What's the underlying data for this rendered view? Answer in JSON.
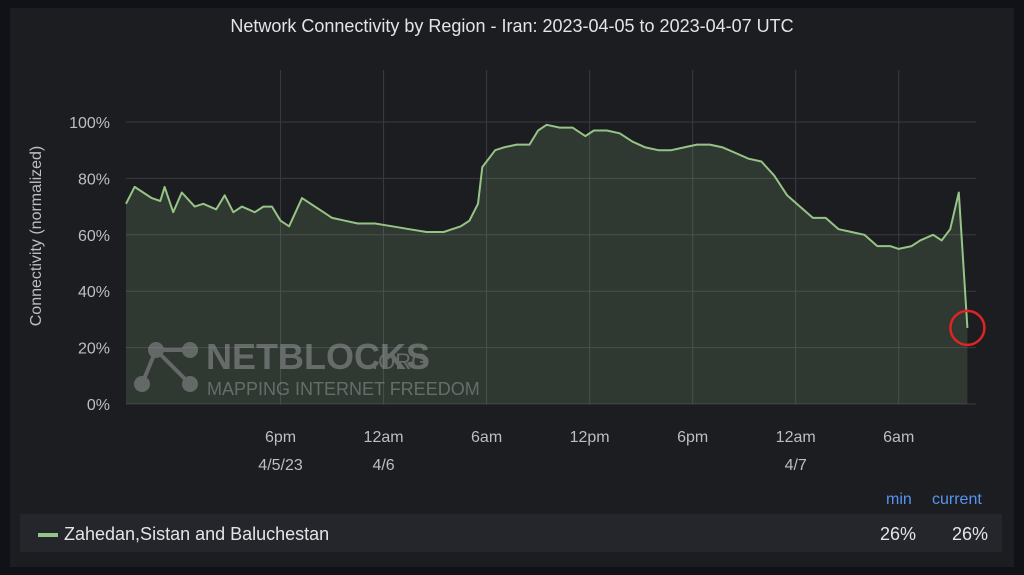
{
  "chart_data": {
    "type": "area",
    "title": "Network Connectivity by Region - Iran: 2023-04-05 to 2023-04-07 UTC",
    "ylabel": "Connectivity (normalized)",
    "xlabel": "",
    "ylim": [
      0,
      100
    ],
    "yticks": [
      "0%",
      "20%",
      "40%",
      "60%",
      "80%",
      "100%"
    ],
    "xlim": [
      "2023-04-05T09:00Z",
      "2023-04-07T10:30Z"
    ],
    "xticks": [
      {
        "label": "6pm",
        "sublabel": "4/5/23",
        "t": "2023-04-05T18:00Z"
      },
      {
        "label": "12am",
        "sublabel": "4/6",
        "t": "2023-04-06T00:00Z"
      },
      {
        "label": "6am",
        "sublabel": "",
        "t": "2023-04-06T06:00Z"
      },
      {
        "label": "12pm",
        "sublabel": "",
        "t": "2023-04-06T12:00Z"
      },
      {
        "label": "6pm",
        "sublabel": "",
        "t": "2023-04-06T18:00Z"
      },
      {
        "label": "12am",
        "sublabel": "4/7",
        "t": "2023-04-07T00:00Z"
      },
      {
        "label": "6am",
        "sublabel": "",
        "t": "2023-04-07T06:00Z"
      }
    ],
    "grid": true,
    "series": [
      {
        "name": "Zahedan,Sistan and Baluchestan",
        "color": "#96c486",
        "x": [
          "2023-04-05T09:00Z",
          "2023-04-05T09:30Z",
          "2023-04-05T10:30Z",
          "2023-04-05T11:00Z",
          "2023-04-05T11:15Z",
          "2023-04-05T11:45Z",
          "2023-04-05T12:15Z",
          "2023-04-05T13:00Z",
          "2023-04-05T13:30Z",
          "2023-04-05T14:15Z",
          "2023-04-05T14:45Z",
          "2023-04-05T15:15Z",
          "2023-04-05T15:45Z",
          "2023-04-05T16:30Z",
          "2023-04-05T17:00Z",
          "2023-04-05T17:30Z",
          "2023-04-05T18:00Z",
          "2023-04-05T18:30Z",
          "2023-04-05T19:15Z",
          "2023-04-05T20:00Z",
          "2023-04-05T20:30Z",
          "2023-04-05T21:00Z",
          "2023-04-05T21:45Z",
          "2023-04-05T22:30Z",
          "2023-04-05T23:30Z",
          "2023-04-06T00:30Z",
          "2023-04-06T01:30Z",
          "2023-04-06T02:30Z",
          "2023-04-06T03:30Z",
          "2023-04-06T04:30Z",
          "2023-04-06T05:00Z",
          "2023-04-06T05:30Z",
          "2023-04-06T05:45Z",
          "2023-04-06T06:30Z",
          "2023-04-06T07:00Z",
          "2023-04-06T07:45Z",
          "2023-04-06T08:30Z",
          "2023-04-06T09:00Z",
          "2023-04-06T09:30Z",
          "2023-04-06T10:15Z",
          "2023-04-06T11:00Z",
          "2023-04-06T11:45Z",
          "2023-04-06T12:15Z",
          "2023-04-06T13:00Z",
          "2023-04-06T13:45Z",
          "2023-04-06T14:30Z",
          "2023-04-06T15:15Z",
          "2023-04-06T16:00Z",
          "2023-04-06T16:45Z",
          "2023-04-06T17:30Z",
          "2023-04-06T18:15Z",
          "2023-04-06T19:00Z",
          "2023-04-06T19:45Z",
          "2023-04-06T20:30Z",
          "2023-04-06T21:15Z",
          "2023-04-06T22:00Z",
          "2023-04-06T22:45Z",
          "2023-04-06T23:30Z",
          "2023-04-07T00:15Z",
          "2023-04-07T01:00Z",
          "2023-04-07T01:45Z",
          "2023-04-07T02:30Z",
          "2023-04-07T03:15Z",
          "2023-04-07T04:00Z",
          "2023-04-07T04:45Z",
          "2023-04-07T05:30Z",
          "2023-04-07T06:00Z",
          "2023-04-07T06:45Z",
          "2023-04-07T07:15Z",
          "2023-04-07T08:00Z",
          "2023-04-07T08:30Z",
          "2023-04-07T09:00Z",
          "2023-04-07T09:30Z",
          "2023-04-07T10:00Z"
        ],
        "values": [
          71,
          77,
          73,
          72,
          77,
          68,
          75,
          70,
          71,
          69,
          74,
          68,
          70,
          68,
          70,
          70,
          65,
          63,
          73,
          70,
          68,
          66,
          65,
          64,
          64,
          63,
          62,
          61,
          61,
          63,
          65,
          71,
          84,
          90,
          91,
          92,
          92,
          97,
          99,
          98,
          98,
          95,
          97,
          97,
          96,
          93,
          91,
          90,
          90,
          91,
          92,
          92,
          91,
          89,
          87,
          86,
          81,
          74,
          70,
          66,
          66,
          62,
          61,
          60,
          56,
          56,
          55,
          56,
          58,
          60,
          58,
          62,
          75,
          27
        ]
      }
    ],
    "annotations": [
      {
        "type": "circle",
        "color": "#e02424",
        "x": "2023-04-07T10:00Z",
        "y": 27
      }
    ]
  },
  "watermark": {
    "brand": "NETBLOCKS",
    "suffix": ".ORG",
    "tagline": "MAPPING INTERNET FREEDOM"
  },
  "legend": {
    "min_header": "min",
    "current_header": "current",
    "series_name": "Zahedan,Sistan and Baluchestan",
    "min": "26%",
    "current": "26%",
    "header_color": "#5794f2"
  }
}
